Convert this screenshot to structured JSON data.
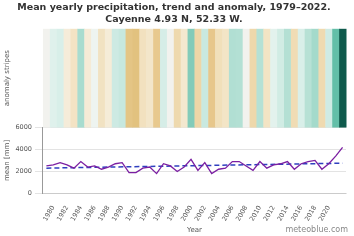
{
  "chart_data": [
    {
      "type": "line",
      "title": [
        "Mean yearly precipitation, trend and anomaly, 1979–2022.",
        "Cayenne 4.93 N, 52.33 W."
      ],
      "ylabel": "mean [mm]",
      "categories": [
        null,
        "1980",
        null,
        "1982",
        null,
        "1984",
        null,
        "1986",
        null,
        "1988",
        null,
        "1990",
        null,
        "1992",
        null,
        "1994",
        null,
        "1996",
        null,
        "1998",
        null,
        "2000",
        null,
        "2002",
        null,
        "2004",
        null,
        "2006",
        null,
        "2008",
        null,
        "2010",
        null,
        "2012",
        null,
        "2014",
        null,
        "2016",
        null,
        "2018",
        null,
        "2020",
        null,
        null
      ],
      "series": [
        {
          "name": "mean",
          "color": "#7b1fa2",
          "line_style": "solid",
          "values": [
            2500,
            2600,
            2800,
            2600,
            2300,
            2900,
            2400,
            2500,
            2200,
            2400,
            2700,
            2800,
            1900,
            1900,
            2300,
            2400,
            1800,
            2700,
            2500,
            2000,
            2400,
            3100,
            2100,
            2800,
            1800,
            2200,
            2300,
            2900,
            2900,
            2500,
            2100,
            2900,
            2300,
            2600,
            2700,
            2900,
            2200,
            2700,
            2900,
            3000,
            2200,
            2700,
            3400,
            4200
          ]
        },
        {
          "name": "trend",
          "color": "#2f3fbf",
          "line_style": "dashed",
          "values": [
            2300,
            null,
            null,
            null,
            null,
            null,
            null,
            null,
            null,
            null,
            null,
            null,
            null,
            null,
            null,
            null,
            null,
            null,
            null,
            null,
            null,
            null,
            null,
            null,
            null,
            null,
            null,
            null,
            null,
            null,
            null,
            null,
            null,
            null,
            null,
            null,
            null,
            null,
            null,
            null,
            null,
            null,
            null,
            2750
          ]
        }
      ],
      "ylim": [
        0,
        6000
      ],
      "yticks": [
        0,
        2000,
        4000,
        6000
      ],
      "grid": true,
      "legend": "none"
    },
    {
      "type": "stripes",
      "ylabel": "anomaly stripes",
      "xlabel": "Year",
      "colors": [
        "#f2f2ee",
        "#dff1ec",
        "#d8efe9",
        "#f5ecd9",
        "#f3e3c4",
        "#a8dccf",
        "#f5ebd6",
        "#eef4f0",
        "#f1e2c2",
        "#f5ecd8",
        "#cdeae3",
        "#c7e8df",
        "#e4c585",
        "#e2c27f",
        "#f2e1bf",
        "#f3e6ca",
        "#e8c98e",
        "#d6ede7",
        "#f2f2ee",
        "#eed9ae",
        "#f3e8cf",
        "#82cbb9",
        "#edd6a7",
        "#c9e9e0",
        "#e7c78b",
        "#f1e0ba",
        "#f3e5c6",
        "#b1dfd3",
        "#b3e0d4",
        "#f2f2ee",
        "#eed8ab",
        "#b5e1d5",
        "#f3e4c4",
        "#e3f2ed",
        "#d1ece4",
        "#b4e0d4",
        "#f0dcb4",
        "#d9efe9",
        "#b7e1d5",
        "#a4dacb",
        "#efdab0",
        "#cfebe4",
        "#63bfa8",
        "#0e5a4c"
      ]
    },
    {
      "source": "meteoblue.com"
    }
  ]
}
